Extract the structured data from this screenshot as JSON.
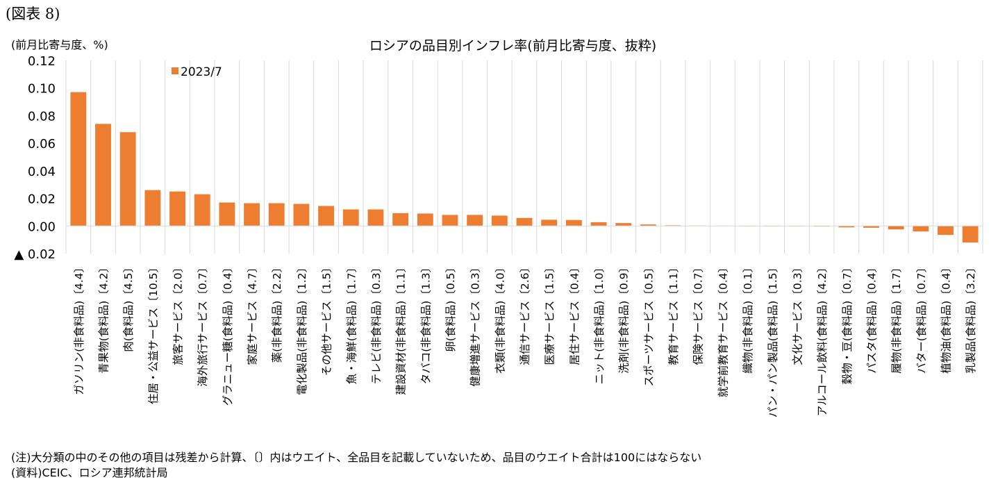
{
  "figure_label": "(図表 8)",
  "unit_label": "(前月比寄与度、%)",
  "notes": {
    "note": "(注)大分類の中のその他の項目は残差から計算、〔〕内はウエイト、全品目を記載していないため、品目のウエイト合計は100にはならない",
    "source": "(資料)CEIC、ロシア連邦統計局"
  },
  "chart_data": {
    "type": "bar",
    "title": "ロシアの品目別インフレ率(前月比寄与度、抜粋)",
    "ylabel": "(前月比寄与度、%)",
    "xlabel": "",
    "ylim": [
      -0.02,
      0.12
    ],
    "yticks": [
      0.12,
      0.1,
      0.08,
      0.06,
      0.04,
      0.02,
      0.0,
      -0.02
    ],
    "ytick_labels": [
      "0.12",
      "0.10",
      "0.08",
      "0.06",
      "0.04",
      "0.02",
      "0.00",
      "▲ 0.02"
    ],
    "grid": "vertical",
    "legend_position": "top-left",
    "bar_color": "#ED7D31",
    "categories": [
      "ガソリン(非食料品)〔4.4〕",
      "青果物(食料品)〔4.2〕",
      "肉(食料品)〔4.5〕",
      "住居・公益サービス〔10.5〕",
      "旅客サービス〔2.0〕",
      "海外旅行サービス〔0.7〕",
      "グラニュー糖(食料品)〔0.4〕",
      "家庭サービス〔4.7〕",
      "薬(非食料品)〔2.2〕",
      "電化製品(非食料品)〔1.2〕",
      "その他サービス〔1.5〕",
      "魚・海鮮(食料品)〔1.7〕",
      "テレビ(非食料品)〔0.3〕",
      "建設資材(非食料品)〔1.1〕",
      "タバコ(非食料品)〔1.3〕",
      "卵(食料品)〔0.5〕",
      "健康増進サービス〔0.3〕",
      "衣類(非食料品)〔4.0〕",
      "通信サービス〔2.6〕",
      "医療サービス〔1.5〕",
      "居住サービス〔0.4〕",
      "ニット(非食料品)〔1.0〕",
      "洗剤(非食料品)〔0.9〕",
      "スポーツサービス〔0.5〕",
      "教育サービス〔1.1〕",
      "保険サービス〔0.7〕",
      "就学前教育サービス〔0.4〕",
      "織物(非食料品)〔0.1〕",
      "パン・パン製品(食料品)〔1.5〕",
      "文化サービス〔0.3〕",
      "アルコール飲料(食料品)〔4.2〕",
      "穀物・豆(食料品)〔0.7〕",
      "パスタ(食料品)〔0.4〕",
      "履物(非食料品)〔1.7〕",
      "バター(食料品)〔0.7〕",
      "植物油(食料品)〔0.4〕",
      "乳製品(食料品)〔3.2〕"
    ],
    "series": [
      {
        "name": "2023/7",
        "values": [
          0.097,
          0.074,
          0.068,
          0.026,
          0.025,
          0.023,
          0.017,
          0.0165,
          0.0165,
          0.016,
          0.0145,
          0.012,
          0.012,
          0.0093,
          0.009,
          0.008,
          0.008,
          0.0075,
          0.0058,
          0.0045,
          0.0043,
          0.0027,
          0.0021,
          0.0011,
          0.0005,
          0.0003,
          0.0002,
          0.0,
          0.0,
          -0.0003,
          -0.0004,
          -0.001,
          -0.0013,
          -0.0025,
          -0.004,
          -0.0065,
          -0.012
        ]
      }
    ]
  }
}
